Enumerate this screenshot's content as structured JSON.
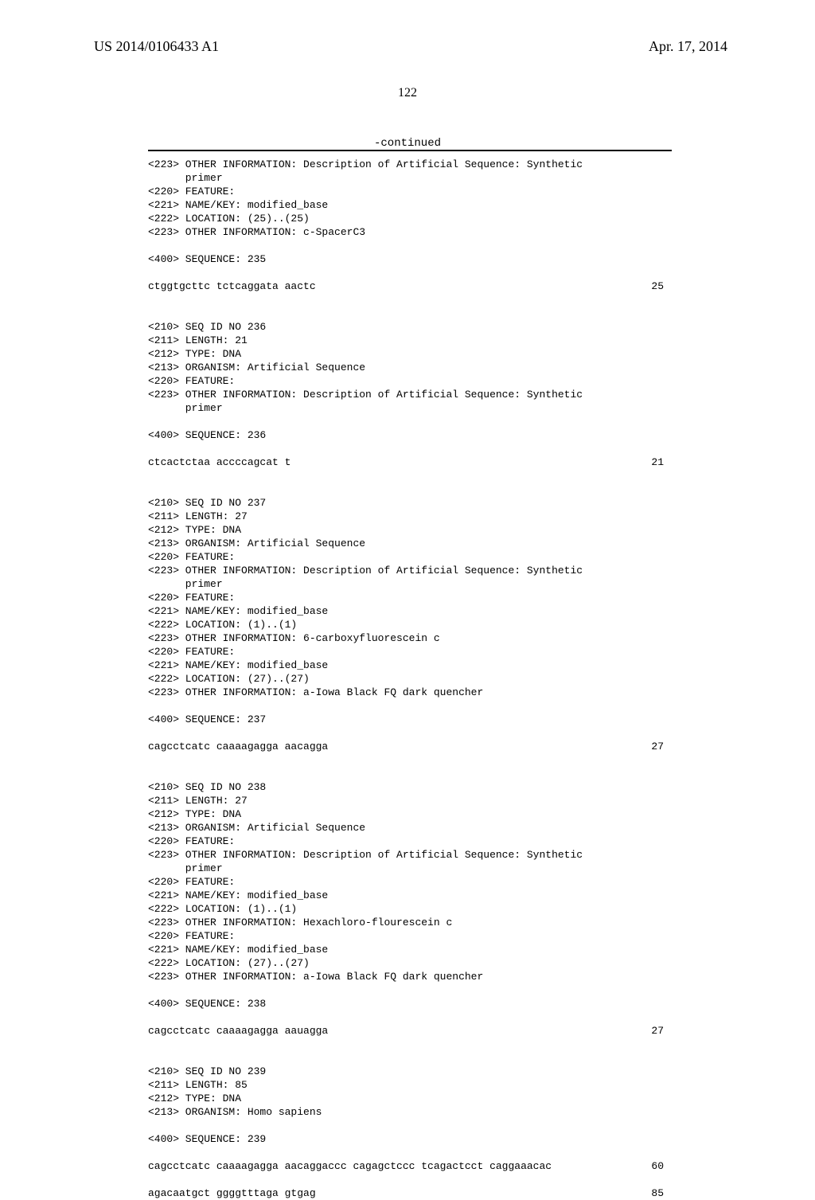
{
  "header": {
    "left": "US 2014/0106433 A1",
    "right": "Apr. 17, 2014"
  },
  "page_number": "122",
  "continued_label": "-continued",
  "lines": [
    {
      "text": "<223> OTHER INFORMATION: Description of Artificial Sequence: Synthetic"
    },
    {
      "text": "      primer"
    },
    {
      "text": "<220> FEATURE:"
    },
    {
      "text": "<221> NAME/KEY: modified_base"
    },
    {
      "text": "<222> LOCATION: (25)..(25)"
    },
    {
      "text": "<223> OTHER INFORMATION: c-SpacerC3"
    },
    {
      "text": ""
    },
    {
      "text": "<400> SEQUENCE: 235"
    },
    {
      "text": ""
    },
    {
      "text": "ctggtgcttc tctcaggata aactc",
      "num": "25"
    },
    {
      "text": ""
    },
    {
      "text": ""
    },
    {
      "text": "<210> SEQ ID NO 236"
    },
    {
      "text": "<211> LENGTH: 21"
    },
    {
      "text": "<212> TYPE: DNA"
    },
    {
      "text": "<213> ORGANISM: Artificial Sequence"
    },
    {
      "text": "<220> FEATURE:"
    },
    {
      "text": "<223> OTHER INFORMATION: Description of Artificial Sequence: Synthetic"
    },
    {
      "text": "      primer"
    },
    {
      "text": ""
    },
    {
      "text": "<400> SEQUENCE: 236"
    },
    {
      "text": ""
    },
    {
      "text": "ctcactctaa accccagcat t",
      "num": "21"
    },
    {
      "text": ""
    },
    {
      "text": ""
    },
    {
      "text": "<210> SEQ ID NO 237"
    },
    {
      "text": "<211> LENGTH: 27"
    },
    {
      "text": "<212> TYPE: DNA"
    },
    {
      "text": "<213> ORGANISM: Artificial Sequence"
    },
    {
      "text": "<220> FEATURE:"
    },
    {
      "text": "<223> OTHER INFORMATION: Description of Artificial Sequence: Synthetic"
    },
    {
      "text": "      primer"
    },
    {
      "text": "<220> FEATURE:"
    },
    {
      "text": "<221> NAME/KEY: modified_base"
    },
    {
      "text": "<222> LOCATION: (1)..(1)"
    },
    {
      "text": "<223> OTHER INFORMATION: 6-carboxyfluorescein c"
    },
    {
      "text": "<220> FEATURE:"
    },
    {
      "text": "<221> NAME/KEY: modified_base"
    },
    {
      "text": "<222> LOCATION: (27)..(27)"
    },
    {
      "text": "<223> OTHER INFORMATION: a-Iowa Black FQ dark quencher"
    },
    {
      "text": ""
    },
    {
      "text": "<400> SEQUENCE: 237"
    },
    {
      "text": ""
    },
    {
      "text": "cagcctcatc caaaagagga aacagga",
      "num": "27"
    },
    {
      "text": ""
    },
    {
      "text": ""
    },
    {
      "text": "<210> SEQ ID NO 238"
    },
    {
      "text": "<211> LENGTH: 27"
    },
    {
      "text": "<212> TYPE: DNA"
    },
    {
      "text": "<213> ORGANISM: Artificial Sequence"
    },
    {
      "text": "<220> FEATURE:"
    },
    {
      "text": "<223> OTHER INFORMATION: Description of Artificial Sequence: Synthetic"
    },
    {
      "text": "      primer"
    },
    {
      "text": "<220> FEATURE:"
    },
    {
      "text": "<221> NAME/KEY: modified_base"
    },
    {
      "text": "<222> LOCATION: (1)..(1)"
    },
    {
      "text": "<223> OTHER INFORMATION: Hexachloro-flourescein c"
    },
    {
      "text": "<220> FEATURE:"
    },
    {
      "text": "<221> NAME/KEY: modified_base"
    },
    {
      "text": "<222> LOCATION: (27)..(27)"
    },
    {
      "text": "<223> OTHER INFORMATION: a-Iowa Black FQ dark quencher"
    },
    {
      "text": ""
    },
    {
      "text": "<400> SEQUENCE: 238"
    },
    {
      "text": ""
    },
    {
      "text": "cagcctcatc caaaagagga aauagga",
      "num": "27"
    },
    {
      "text": ""
    },
    {
      "text": ""
    },
    {
      "text": "<210> SEQ ID NO 239"
    },
    {
      "text": "<211> LENGTH: 85"
    },
    {
      "text": "<212> TYPE: DNA"
    },
    {
      "text": "<213> ORGANISM: Homo sapiens"
    },
    {
      "text": ""
    },
    {
      "text": "<400> SEQUENCE: 239"
    },
    {
      "text": ""
    },
    {
      "text": "cagcctcatc caaaagagga aacaggaccc cagagctccc tcagactcct caggaaacac",
      "num": "60"
    },
    {
      "text": ""
    },
    {
      "text": "agacaatgct ggggtttaga gtgag",
      "num": "85"
    }
  ]
}
